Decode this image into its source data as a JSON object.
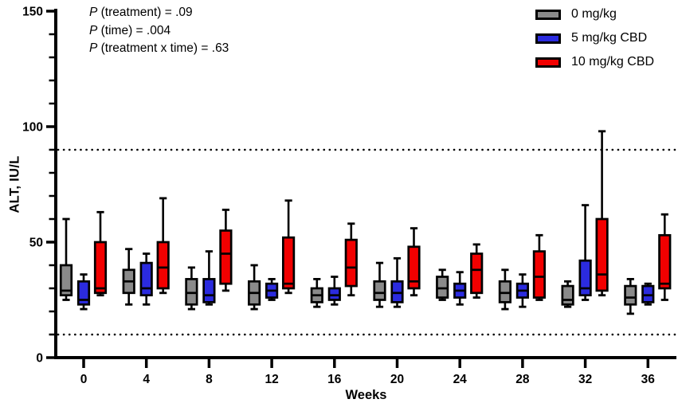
{
  "figure": {
    "annotations": [
      {
        "p": "P",
        "rest": " (treatment) = .09"
      },
      {
        "p": "P",
        "rest": " (time) = .004"
      },
      {
        "p": "P",
        "rest": " (treatment x time) = .63"
      }
    ]
  },
  "chart_data": {
    "type": "boxplot",
    "title": "",
    "xlabel": "Weeks",
    "ylabel": "ALT, IU/L",
    "ylim": [
      0,
      150
    ],
    "yticks_major": [
      0,
      50,
      100,
      150
    ],
    "ytick_minor_step": 10,
    "grid": false,
    "legend_position": "top-right",
    "reference_lines": [
      90,
      10
    ],
    "reference_line_style": "dotted",
    "categories": [
      0,
      4,
      8,
      12,
      16,
      20,
      24,
      28,
      32,
      36
    ],
    "box_stats_order": [
      "min",
      "q1",
      "median",
      "q3",
      "max"
    ],
    "series": [
      {
        "name": "0 mg/kg",
        "color": "#8a8a8a",
        "boxes": [
          [
            25,
            27,
            29,
            40,
            60
          ],
          [
            23,
            28,
            33,
            38,
            47
          ],
          [
            21,
            23,
            28,
            34,
            39
          ],
          [
            21,
            23,
            28,
            33,
            40
          ],
          [
            22,
            24,
            27,
            30,
            34
          ],
          [
            22,
            25,
            28,
            33,
            41
          ],
          [
            25,
            26,
            30,
            35,
            38
          ],
          [
            21,
            24,
            28,
            33,
            38
          ],
          [
            22,
            23,
            25,
            31,
            33
          ],
          [
            19,
            23,
            26,
            31,
            34
          ]
        ]
      },
      {
        "name": "5 mg/kg CBD",
        "color": "#2b2bdf",
        "boxes": [
          [
            21,
            23,
            25,
            33,
            36
          ],
          [
            23,
            27,
            30,
            41,
            45
          ],
          [
            23,
            24,
            27,
            34,
            46
          ],
          [
            25,
            26,
            29,
            32,
            34
          ],
          [
            23,
            25,
            27,
            30,
            35
          ],
          [
            22,
            24,
            28,
            33,
            43
          ],
          [
            23,
            26,
            29,
            32,
            37
          ],
          [
            22,
            26,
            29,
            32,
            36
          ],
          [
            25,
            27,
            30,
            42,
            66
          ],
          [
            23,
            24,
            27,
            31,
            32
          ]
        ]
      },
      {
        "name": "10 mg/kg CBD",
        "color": "#f20000",
        "boxes": [
          [
            27,
            28,
            30,
            50,
            63
          ],
          [
            28,
            30,
            39,
            50,
            69
          ],
          [
            29,
            32,
            45,
            55,
            64
          ],
          [
            28,
            30,
            32,
            52,
            68
          ],
          [
            27,
            31,
            39,
            51,
            58
          ],
          [
            27,
            30,
            33,
            48,
            56
          ],
          [
            26,
            28,
            38,
            45,
            49
          ],
          [
            25,
            26,
            35,
            46,
            53
          ],
          [
            27,
            29,
            36,
            60,
            98
          ],
          [
            25,
            30,
            32,
            53,
            62
          ]
        ]
      }
    ]
  }
}
